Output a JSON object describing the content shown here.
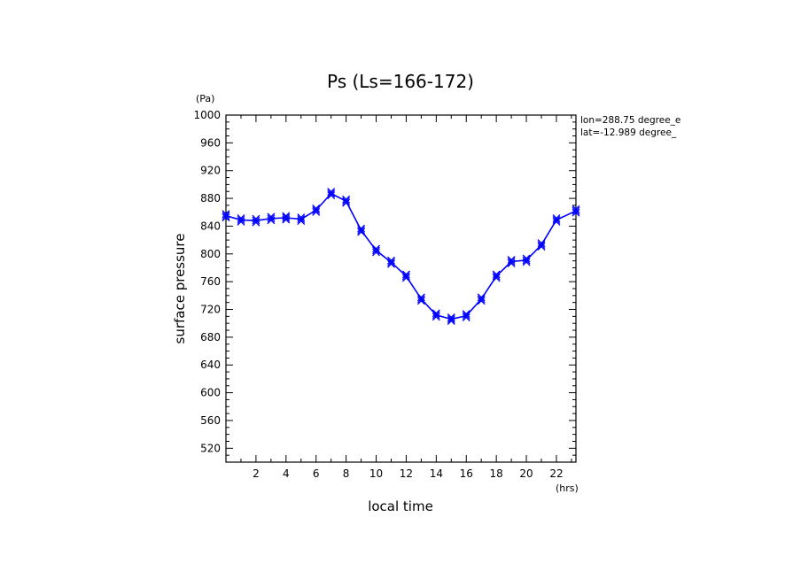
{
  "chart_data": {
    "type": "line",
    "title": "Ps (Ls=166-172)",
    "xlabel": "local time",
    "ylabel": "surface pressure",
    "x_unit": "(hrs)",
    "y_unit": "(Pa)",
    "xlim": [
      0,
      23.3
    ],
    "ylim": [
      500,
      1000
    ],
    "xticks": [
      2,
      4,
      6,
      8,
      10,
      12,
      14,
      16,
      18,
      20,
      22
    ],
    "yticks": [
      520,
      560,
      600,
      640,
      680,
      720,
      760,
      800,
      840,
      880,
      920,
      960,
      1000
    ],
    "annotations": [
      "lon=288.75 degree_e",
      "lat=-12.989 degree_"
    ],
    "grid": false,
    "line_color": "#0000ff",
    "series": [
      {
        "x": [
          0,
          1,
          2,
          3,
          4,
          5,
          6,
          7,
          8,
          9,
          10,
          11,
          12,
          13,
          14,
          15,
          16,
          17,
          18,
          19,
          20,
          21,
          22,
          23.3
        ],
        "values": [
          855,
          849,
          848,
          851,
          852,
          850,
          863,
          887,
          876,
          834,
          805,
          788,
          768,
          735,
          712,
          706,
          711,
          735,
          768,
          789,
          791,
          813,
          849,
          862
        ]
      }
    ]
  }
}
